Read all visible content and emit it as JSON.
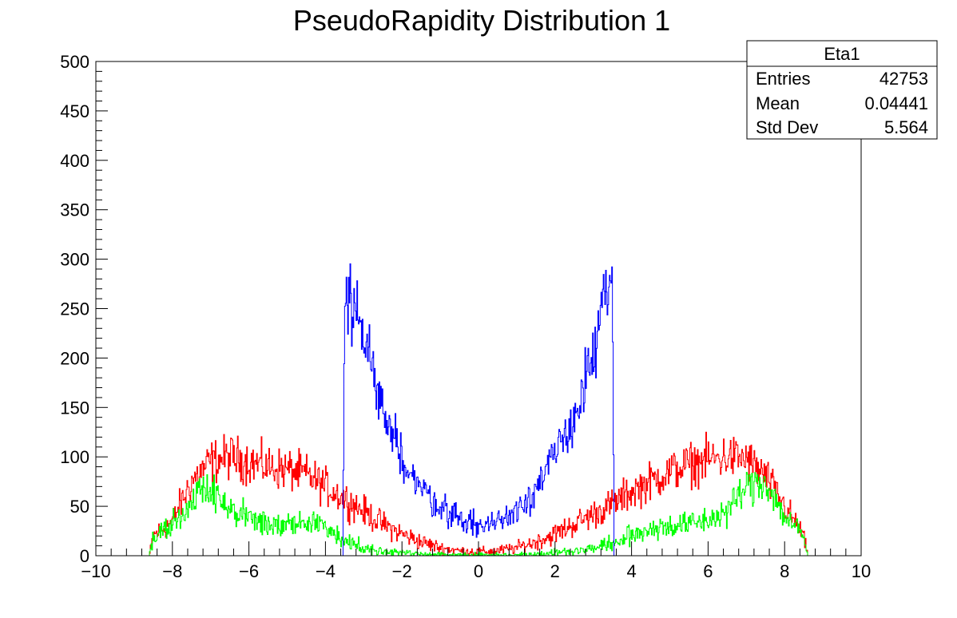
{
  "chart_data": {
    "type": "line",
    "title": "PseudoRapidity Distribution 1",
    "xlabel": "",
    "ylabel": "",
    "xlim": [
      -10,
      10
    ],
    "ylim": [
      0,
      500
    ],
    "x_ticks": [
      "−10",
      "−8",
      "−6",
      "−4",
      "−2",
      "0",
      "2",
      "4",
      "6",
      "8",
      "10"
    ],
    "y_ticks": [
      "0",
      "50",
      "100",
      "150",
      "200",
      "250",
      "300",
      "350",
      "400",
      "450",
      "500"
    ],
    "grid": false,
    "stats_box": {
      "title": "Eta1",
      "rows": [
        {
          "label": "Entries",
          "value": "42753"
        },
        {
          "label": "Mean",
          "value": "0.04441"
        },
        {
          "label": "Std Dev",
          "value": "5.564"
        }
      ]
    },
    "series": [
      {
        "color": "#ff0000",
        "x": [
          -10,
          -9,
          -8.6,
          -8.5,
          -8,
          -7.5,
          -7,
          -6.5,
          -6,
          -5.5,
          -5,
          -4.5,
          -4,
          -3.5,
          -3,
          -2.5,
          -2,
          -1.5,
          -1,
          -0.5,
          0,
          0.5,
          1,
          1.5,
          2,
          2.5,
          3,
          3.5,
          4,
          4.5,
          5,
          5.5,
          6,
          6.5,
          7,
          7.5,
          8,
          8.5,
          8.6,
          9,
          10
        ],
        "y": [
          0,
          0,
          0,
          20,
          35,
          75,
          95,
          100,
          95,
          90,
          87,
          82,
          70,
          58,
          45,
          32,
          22,
          14,
          8,
          5,
          4,
          5,
          8,
          14,
          22,
          32,
          42,
          52,
          65,
          75,
          85,
          92,
          97,
          100,
          98,
          80,
          50,
          20,
          0,
          0,
          0
        ]
      },
      {
        "color": "#00ff00",
        "x": [
          -10,
          -9,
          -8.6,
          -8.5,
          -8,
          -7.5,
          -7.2,
          -7,
          -6.5,
          -6,
          -5.5,
          -5,
          -4.5,
          -4,
          -3.5,
          -3,
          -2.5,
          -2,
          -1.5,
          -1,
          -0.5,
          0,
          0.5,
          1,
          1.5,
          2,
          2.5,
          3,
          3.5,
          4,
          4.5,
          5,
          5.5,
          6,
          6.5,
          7,
          7.5,
          8,
          8.5,
          8.6,
          9,
          10
        ],
        "y": [
          0,
          0,
          0,
          20,
          30,
          55,
          72,
          68,
          45,
          38,
          32,
          30,
          34,
          30,
          15,
          8,
          5,
          3,
          2,
          1,
          1,
          1,
          1,
          1,
          2,
          3,
          5,
          8,
          12,
          20,
          28,
          30,
          32,
          36,
          45,
          70,
          75,
          40,
          20,
          0,
          0,
          0
        ]
      },
      {
        "color": "#0000ff",
        "x": [
          -10,
          -5,
          -3.55,
          -3.5,
          -3.2,
          -3,
          -2.5,
          -2,
          -1.5,
          -1,
          -0.5,
          0,
          0.5,
          1,
          1.5,
          2,
          2.5,
          3,
          3.3,
          3.45,
          3.5,
          3.55,
          5,
          10
        ],
        "y": [
          0,
          0,
          0,
          255,
          250,
          220,
          150,
          100,
          68,
          50,
          38,
          30,
          34,
          48,
          68,
          100,
          140,
          200,
          260,
          270,
          260,
          0,
          0,
          0
        ]
      }
    ]
  }
}
